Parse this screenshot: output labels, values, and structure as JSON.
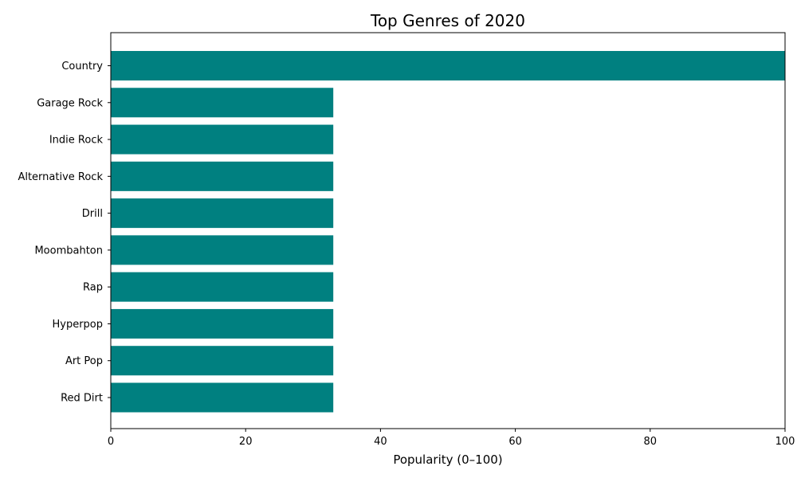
{
  "chart_data": {
    "type": "bar",
    "orientation": "horizontal",
    "title": "Top Genres of 2020",
    "xlabel": "Popularity (0–100)",
    "ylabel": "",
    "xlim": [
      0,
      100
    ],
    "xticks": [
      0,
      20,
      40,
      60,
      80,
      100
    ],
    "categories": [
      "Country",
      "Garage Rock",
      "Indie Rock",
      "Alternative Rock",
      "Drill",
      "Moombahton",
      "Rap",
      "Hyperpop",
      "Art Pop",
      "Red Dirt"
    ],
    "values": [
      100,
      33,
      33,
      33,
      33,
      33,
      33,
      33,
      33,
      33
    ],
    "bar_color": "#008080",
    "grid": false,
    "legend": "none"
  }
}
